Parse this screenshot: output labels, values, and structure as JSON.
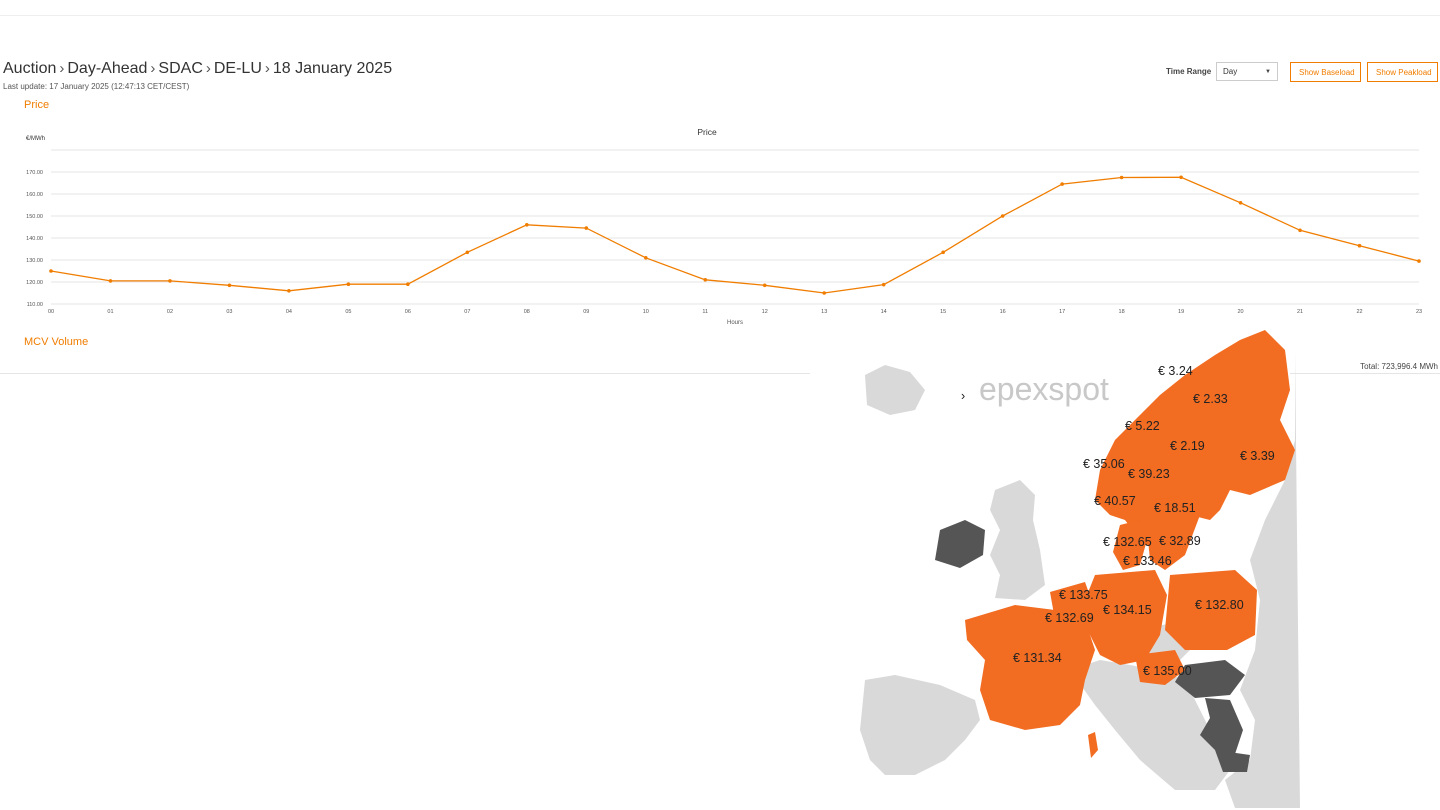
{
  "breadcrumb": {
    "items": [
      "Auction",
      "Day-Ahead",
      "SDAC",
      "DE-LU",
      "18 January 2025"
    ],
    "separator": "›"
  },
  "last_update": "Last update: 17 January 2025 (12:47:13 CET/CEST)",
  "controls": {
    "time_range_label": "Time Range",
    "time_range_value": "Day",
    "baseload_button": "Show Baseload",
    "peakload_button": "Show Peakload"
  },
  "sections": {
    "price": "Price",
    "mcv_volume": "MCV Volume"
  },
  "total_volume": "Total: 723,996.4 MWh",
  "colors": {
    "accent": "#f07d00",
    "map_coupled": "#f26c21",
    "map_dark": "#555555",
    "map_light": "#d9d9d9"
  },
  "chart_data": {
    "type": "line",
    "title": "Price",
    "ylabel": "€/MWh",
    "xlabel": "Hours",
    "ylim": [
      110,
      170
    ],
    "yticks": [
      "110.00",
      "120.00",
      "130.00",
      "140.00",
      "150.00",
      "160.00",
      "170.00"
    ],
    "categories": [
      "00",
      "01",
      "02",
      "03",
      "04",
      "05",
      "06",
      "07",
      "08",
      "09",
      "10",
      "11",
      "12",
      "13",
      "14",
      "15",
      "16",
      "17",
      "18",
      "19",
      "20",
      "21",
      "22",
      "23"
    ],
    "series": [
      {
        "name": "Price",
        "values": [
          125.0,
          120.5,
          120.5,
          118.5,
          116.0,
          119.0,
          119.0,
          133.5,
          146.0,
          144.5,
          131.0,
          121.0,
          118.5,
          115.0,
          118.8,
          133.5,
          150.0,
          164.5,
          167.5,
          167.6,
          156.0,
          143.5,
          136.5,
          129.5
        ]
      }
    ],
    "grid": true,
    "legend": "none"
  },
  "map": {
    "logo_text": "epexspot",
    "price_labels": [
      "€ 3.24",
      "€ 2.33",
      "€ 5.22",
      "€ 2.19",
      "€ 3.39",
      "€ 35.06",
      "€ 39.23",
      "€ 40.57",
      "€ 18.51",
      "€ 132.65",
      "€ 32.89",
      "€ 133.46",
      "€ 133.75",
      "€ 134.15",
      "€ 132.80",
      "€ 132.69",
      "€ 131.34",
      "€ 135.00"
    ]
  }
}
